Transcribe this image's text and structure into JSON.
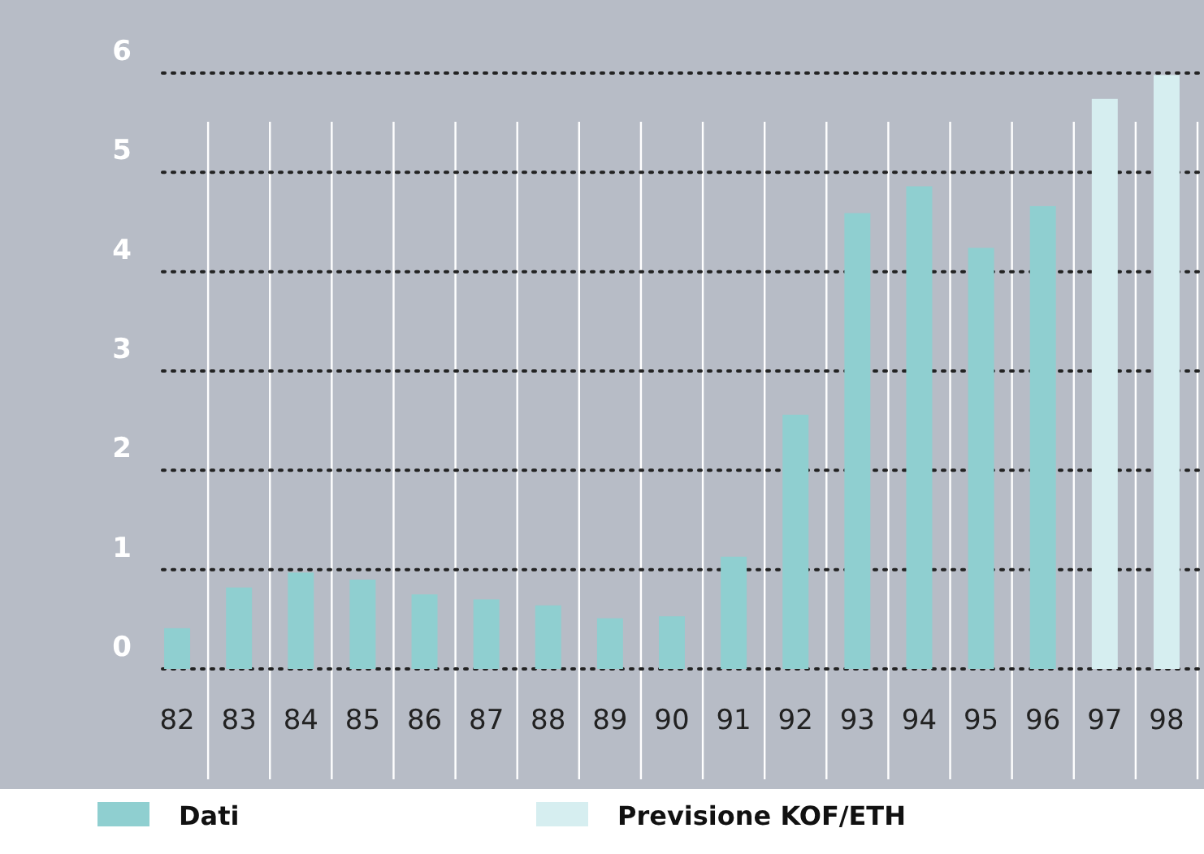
{
  "chart_data": {
    "type": "bar",
    "categories": [
      "82",
      "83",
      "84",
      "85",
      "86",
      "87",
      "88",
      "89",
      "90",
      "91",
      "92",
      "93",
      "94",
      "95",
      "96",
      "97",
      "98"
    ],
    "series": [
      {
        "name": "Dati",
        "color": "#8fcfd0",
        "values": [
          0.41,
          0.82,
          0.97,
          0.9,
          0.75,
          0.7,
          0.64,
          0.51,
          0.53,
          1.13,
          2.56,
          4.59,
          4.86,
          4.24,
          4.66,
          null,
          null
        ]
      },
      {
        "name": "Previsione KOF/ETH",
        "color": "#d6eef0",
        "values": [
          null,
          null,
          null,
          null,
          null,
          null,
          null,
          null,
          null,
          null,
          null,
          null,
          null,
          null,
          null,
          5.74,
          5.98
        ]
      }
    ],
    "ylim": [
      0,
      6
    ],
    "yticks": [
      0,
      1,
      2,
      3,
      4,
      5,
      6
    ],
    "grid": "y",
    "legend": "bottom"
  }
}
